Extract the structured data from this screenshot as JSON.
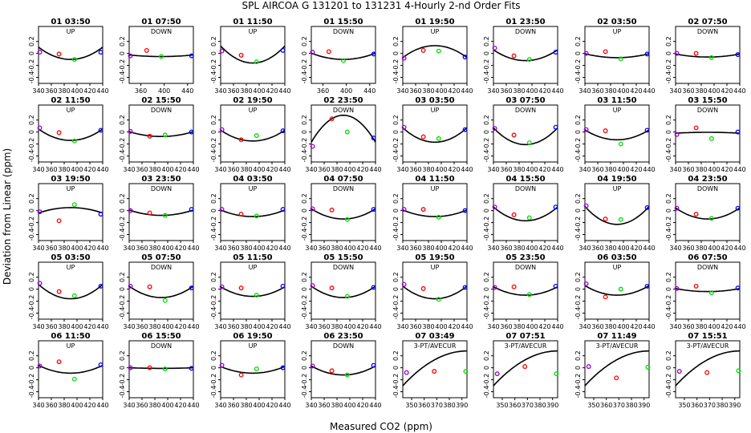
{
  "figure": {
    "title": "SPL   AIRCOA G   131201 to 131231   4-Hourly 2-nd Order Fits",
    "ylabel": "Deviation from Linear (ppm)",
    "xlabel": "Measured CO2 (ppm)"
  },
  "chart_data": {
    "type": "scatter",
    "ylim": [
      -0.5,
      0.45
    ],
    "yticks": [
      -0.4,
      -0.2,
      0.0,
      0.2
    ],
    "grid": false,
    "point_colors": {
      "low": "#9900cc",
      "mid_low": "#ff0000",
      "mid_high": "#00dd00",
      "high": "#0000ff"
    },
    "panels": [
      {
        "label": "01 03:50",
        "dir": "UP",
        "xlim": [
          340,
          440
        ],
        "xticks": [
          340,
          360,
          380,
          400,
          420,
          440
        ],
        "x": [
          342,
          372,
          396,
          437
        ],
        "y": [
          0.02,
          -0.01,
          -0.1,
          0.02
        ],
        "a": 0.105,
        "b": -0.1
      },
      {
        "label": "01 07:50",
        "dir": "DOWN",
        "xlim": [
          340,
          450
        ],
        "xticks": [
          360,
          400,
          440
        ],
        "x": [
          342,
          370,
          395,
          447
        ],
        "y": [
          -0.04,
          0.05,
          -0.05,
          -0.04
        ],
        "a": -0.025,
        "b": -0.052
      },
      {
        "label": "01 11:50",
        "dir": "UP",
        "xlim": [
          340,
          440
        ],
        "xticks": [
          340,
          360,
          380,
          400,
          420,
          440
        ],
        "x": [
          342,
          372,
          396,
          437
        ],
        "y": [
          0.04,
          -0.03,
          -0.14,
          0.05
        ],
        "a": 0.125,
        "b": -0.16
      },
      {
        "label": "01 15:50",
        "dir": "DOWN",
        "xlim": [
          340,
          450
        ],
        "xticks": [
          360,
          400,
          440
        ],
        "x": [
          342,
          370,
          395,
          447
        ],
        "y": [
          0.02,
          0.03,
          -0.12,
          -0.01
        ],
        "a": 0.005,
        "b": -0.1
      },
      {
        "label": "01 19:50",
        "dir": "UP",
        "xlim": [
          340,
          440
        ],
        "xticks": [
          340,
          360,
          380,
          400,
          420,
          440
        ],
        "x": [
          342,
          372,
          396,
          437
        ],
        "y": [
          -0.08,
          0.05,
          0.04,
          -0.06
        ],
        "a": -0.07,
        "b": 0.13
      },
      {
        "label": "01 23:50",
        "dir": "DOWN",
        "xlim": [
          340,
          440
        ],
        "xticks": [
          340,
          360,
          380,
          400,
          420,
          440
        ],
        "x": [
          342,
          372,
          396,
          437
        ],
        "y": [
          0.09,
          -0.04,
          -0.1,
          0.02
        ],
        "a": 0.06,
        "b": -0.12
      },
      {
        "label": "02 03:50",
        "dir": "UP",
        "xlim": [
          340,
          440
        ],
        "xticks": [
          340,
          360,
          380,
          400,
          420,
          440
        ],
        "x": [
          342,
          372,
          396,
          437
        ],
        "y": [
          0.0,
          0.03,
          -0.09,
          -0.01
        ],
        "a": -0.005,
        "b": -0.07
      },
      {
        "label": "02 07:50",
        "dir": "DOWN",
        "xlim": [
          340,
          440
        ],
        "xticks": [
          340,
          360,
          380,
          400,
          420,
          440
        ],
        "x": [
          342,
          372,
          396,
          437
        ],
        "y": [
          0.0,
          0.0,
          -0.07,
          -0.02
        ],
        "a": -0.01,
        "b": -0.06
      },
      {
        "label": "02 11:50",
        "dir": "UP",
        "xlim": [
          340,
          440
        ],
        "xticks": [
          340,
          360,
          380,
          400,
          420,
          440
        ],
        "x": [
          342,
          372,
          396,
          437
        ],
        "y": [
          0.07,
          -0.01,
          -0.15,
          0.03
        ],
        "a": 0.05,
        "b": -0.14
      },
      {
        "label": "02 15:50",
        "dir": "DOWN",
        "xlim": [
          340,
          440
        ],
        "xticks": [
          340,
          360,
          380,
          400,
          420,
          440
        ],
        "x": [
          342,
          372,
          396,
          437
        ],
        "y": [
          0.01,
          -0.07,
          -0.05,
          0.0
        ],
        "a": 0.005,
        "b": -0.075
      },
      {
        "label": "02 19:50",
        "dir": "UP",
        "xlim": [
          340,
          440
        ],
        "xticks": [
          340,
          360,
          380,
          400,
          420,
          440
        ],
        "x": [
          342,
          372,
          396,
          437
        ],
        "y": [
          0.04,
          -0.13,
          -0.06,
          0.02
        ],
        "a": 0.03,
        "b": -0.15
      },
      {
        "label": "02 23:50",
        "dir": "DOWN",
        "xlim": [
          340,
          440
        ],
        "xticks": [
          340,
          360,
          380,
          400,
          420,
          440
        ],
        "x": [
          342,
          372,
          396,
          437
        ],
        "y": [
          -0.24,
          0.22,
          0.0,
          -0.1
        ],
        "a": -0.17,
        "b": 0.28
      },
      {
        "label": "03 03:50",
        "dir": "UP",
        "xlim": [
          340,
          440
        ],
        "xticks": [
          340,
          360,
          380,
          400,
          420,
          440
        ],
        "x": [
          342,
          372,
          396,
          437
        ],
        "y": [
          0.08,
          -0.08,
          -0.11,
          0.04
        ],
        "a": 0.07,
        "b": -0.17
      },
      {
        "label": "03 07:50",
        "dir": "DOWN",
        "xlim": [
          340,
          440
        ],
        "xticks": [
          340,
          360,
          380,
          400,
          420,
          440
        ],
        "x": [
          342,
          372,
          396,
          437
        ],
        "y": [
          0.06,
          -0.05,
          -0.18,
          0.08
        ],
        "a": 0.07,
        "b": -0.21
      },
      {
        "label": "03 11:50",
        "dir": "UP",
        "xlim": [
          340,
          440
        ],
        "xticks": [
          340,
          360,
          380,
          400,
          420,
          440
        ],
        "x": [
          342,
          372,
          396,
          437
        ],
        "y": [
          0.04,
          0.02,
          -0.2,
          0.03
        ],
        "a": 0.035,
        "b": -0.13
      },
      {
        "label": "03 15:50",
        "dir": "DOWN",
        "xlim": [
          340,
          440
        ],
        "xticks": [
          340,
          360,
          380,
          400,
          420,
          440
        ],
        "x": [
          342,
          372,
          396,
          437
        ],
        "y": [
          -0.04,
          0.07,
          -0.11,
          0.0
        ],
        "a": -0.02,
        "b": -0.005
      },
      {
        "label": "03 19:50",
        "dir": "UP",
        "xlim": [
          340,
          440
        ],
        "xticks": [
          340,
          360,
          380,
          400,
          420,
          440
        ],
        "x": [
          342,
          372,
          396,
          437
        ],
        "y": [
          -0.02,
          -0.17,
          0.1,
          -0.06
        ],
        "a": -0.04,
        "b": 0.05
      },
      {
        "label": "03 23:50",
        "dir": "DOWN",
        "xlim": [
          340,
          440
        ],
        "xticks": [
          340,
          360,
          380,
          400,
          420,
          440
        ],
        "x": [
          342,
          372,
          396,
          437
        ],
        "y": [
          0.0,
          -0.04,
          -0.08,
          0.02
        ],
        "a": 0.01,
        "b": -0.08
      },
      {
        "label": "04 03:50",
        "dir": "UP",
        "xlim": [
          340,
          440
        ],
        "xticks": [
          340,
          360,
          380,
          400,
          420,
          440
        ],
        "x": [
          342,
          372,
          396,
          437
        ],
        "y": [
          0.02,
          -0.06,
          -0.09,
          0.02
        ],
        "a": 0.01,
        "b": -0.1
      },
      {
        "label": "04 07:50",
        "dir": "DOWN",
        "xlim": [
          340,
          440
        ],
        "xticks": [
          340,
          360,
          380,
          400,
          420,
          440
        ],
        "x": [
          342,
          372,
          396,
          437
        ],
        "y": [
          0.03,
          0.01,
          -0.15,
          0.02
        ],
        "a": 0.03,
        "b": -0.14
      },
      {
        "label": "04 11:50",
        "dir": "UP",
        "xlim": [
          340,
          440
        ],
        "xticks": [
          340,
          360,
          380,
          400,
          420,
          440
        ],
        "x": [
          342,
          372,
          396,
          437
        ],
        "y": [
          0.02,
          0.02,
          -0.11,
          0.0
        ],
        "a": 0.01,
        "b": -0.1
      },
      {
        "label": "04 15:50",
        "dir": "DOWN",
        "xlim": [
          340,
          440
        ],
        "xticks": [
          340,
          360,
          380,
          400,
          420,
          440
        ],
        "x": [
          342,
          372,
          396,
          437
        ],
        "y": [
          0.06,
          -0.07,
          -0.12,
          0.06
        ],
        "a": 0.06,
        "b": -0.17
      },
      {
        "label": "04 19:50",
        "dir": "UP",
        "xlim": [
          340,
          440
        ],
        "xticks": [
          340,
          360,
          380,
          400,
          420,
          440
        ],
        "x": [
          342,
          372,
          396,
          437
        ],
        "y": [
          0.08,
          -0.14,
          -0.15,
          0.05
        ],
        "a": 0.07,
        "b": -0.23
      },
      {
        "label": "04 23:50",
        "dir": "DOWN",
        "xlim": [
          340,
          440
        ],
        "xticks": [
          340,
          360,
          380,
          400,
          420,
          440
        ],
        "x": [
          342,
          372,
          396,
          437
        ],
        "y": [
          0.04,
          -0.06,
          -0.13,
          0.04
        ],
        "a": 0.045,
        "b": -0.14
      },
      {
        "label": "05 03:50",
        "dir": "UP",
        "xlim": [
          340,
          440
        ],
        "xticks": [
          340,
          360,
          380,
          400,
          420,
          440
        ],
        "x": [
          342,
          372,
          396,
          437
        ],
        "y": [
          0.1,
          -0.04,
          -0.11,
          0.05
        ],
        "a": 0.08,
        "b": -0.16
      },
      {
        "label": "05 07:50",
        "dir": "DOWN",
        "xlim": [
          340,
          440
        ],
        "xticks": [
          340,
          360,
          380,
          400,
          420,
          440
        ],
        "x": [
          342,
          372,
          396,
          437
        ],
        "y": [
          0.05,
          0.04,
          -0.19,
          0.02
        ],
        "a": 0.05,
        "b": -0.14
      },
      {
        "label": "05 11:50",
        "dir": "UP",
        "xlim": [
          340,
          440
        ],
        "xticks": [
          340,
          360,
          380,
          400,
          420,
          440
        ],
        "x": [
          342,
          372,
          396,
          437
        ],
        "y": [
          0.04,
          0.02,
          -0.1,
          0.05
        ],
        "a": 0.04,
        "b": -0.12
      },
      {
        "label": "05 15:50",
        "dir": "DOWN",
        "xlim": [
          340,
          440
        ],
        "xticks": [
          340,
          360,
          380,
          400,
          420,
          440
        ],
        "x": [
          342,
          372,
          396,
          437
        ],
        "y": [
          0.06,
          0.02,
          -0.12,
          0.03
        ],
        "a": 0.05,
        "b": -0.14
      },
      {
        "label": "05 19:50",
        "dir": "UP",
        "xlim": [
          340,
          440
        ],
        "xticks": [
          340,
          360,
          380,
          400,
          420,
          440
        ],
        "x": [
          342,
          372,
          396,
          437
        ],
        "y": [
          0.08,
          0.01,
          -0.17,
          0.03
        ],
        "a": 0.05,
        "b": -0.16
      },
      {
        "label": "05 23:50",
        "dir": "DOWN",
        "xlim": [
          340,
          440
        ],
        "xticks": [
          340,
          360,
          380,
          400,
          420,
          440
        ],
        "x": [
          342,
          372,
          396,
          437
        ],
        "y": [
          0.03,
          0.04,
          -0.09,
          0.05
        ],
        "a": 0.04,
        "b": -0.1
      },
      {
        "label": "06 03:50",
        "dir": "UP",
        "xlim": [
          340,
          440
        ],
        "xticks": [
          340,
          360,
          380,
          400,
          420,
          440
        ],
        "x": [
          342,
          372,
          396,
          437
        ],
        "y": [
          0.09,
          -0.13,
          0.0,
          0.05
        ],
        "a": 0.06,
        "b": -0.1
      },
      {
        "label": "06 07:50",
        "dir": "DOWN",
        "xlim": [
          340,
          440
        ],
        "xticks": [
          340,
          360,
          380,
          400,
          420,
          440
        ],
        "x": [
          342,
          372,
          396,
          437
        ],
        "y": [
          0.01,
          0.05,
          -0.06,
          0.02
        ],
        "a": 0.01,
        "b": -0.04
      },
      {
        "label": "06 11:50",
        "dir": "UP",
        "xlim": [
          340,
          440
        ],
        "xticks": [
          340,
          360,
          380,
          400,
          420,
          440
        ],
        "x": [
          342,
          372,
          396,
          437
        ],
        "y": [
          0.03,
          0.1,
          -0.19,
          0.05
        ],
        "a": 0.04,
        "b": -0.09
      },
      {
        "label": "06 15:50",
        "dir": "DOWN",
        "xlim": [
          340,
          440
        ],
        "xticks": [
          340,
          360,
          380,
          400,
          420,
          440
        ],
        "x": [
          342,
          372,
          396,
          437
        ],
        "y": [
          0.0,
          0.0,
          -0.02,
          -0.01
        ],
        "a": 0.0,
        "b": -0.01
      },
      {
        "label": "06 19:50",
        "dir": "UP",
        "xlim": [
          340,
          440
        ],
        "xticks": [
          340,
          360,
          380,
          400,
          420,
          440
        ],
        "x": [
          342,
          372,
          396,
          437
        ],
        "y": [
          0.04,
          -0.12,
          -0.02,
          0.0
        ],
        "a": 0.02,
        "b": -0.09
      },
      {
        "label": "06 23:50",
        "dir": "DOWN",
        "xlim": [
          340,
          440
        ],
        "xticks": [
          340,
          360,
          380,
          400,
          420,
          440
        ],
        "x": [
          342,
          372,
          396,
          437
        ],
        "y": [
          0.03,
          -0.05,
          -0.12,
          0.04
        ],
        "a": 0.03,
        "b": -0.12
      },
      {
        "label": "07 03:49",
        "dir": "3-PT/AVECUR",
        "xlim": [
          343,
          394
        ],
        "xticks": [
          350,
          360,
          370,
          380,
          390
        ],
        "x": [
          346,
          368,
          393
        ],
        "y": [
          -0.08,
          -0.06,
          -0.06
        ],
        "curve_start": -0.3,
        "curve_end": 0.28
      },
      {
        "label": "07 07:51",
        "dir": "3-PT/AVECUR",
        "xlim": [
          343,
          394
        ],
        "xticks": [
          350,
          360,
          370,
          380,
          390
        ],
        "x": [
          346,
          368,
          393
        ],
        "y": [
          -0.1,
          0.02,
          -0.1
        ],
        "curve_start": -0.3,
        "curve_end": 0.28
      },
      {
        "label": "07 11:49",
        "dir": "3-PT/AVECUR",
        "xlim": [
          343,
          394
        ],
        "xticks": [
          350,
          360,
          370,
          380,
          390
        ],
        "x": [
          346,
          368,
          393
        ],
        "y": [
          0.02,
          -0.17,
          0.01
        ],
        "curve_start": -0.3,
        "curve_end": 0.28
      },
      {
        "label": "07 15:51",
        "dir": "3-PT/AVECUR",
        "xlim": [
          343,
          394
        ],
        "xticks": [
          350,
          360,
          370,
          380,
          390
        ],
        "x": [
          346,
          368,
          393
        ],
        "y": [
          -0.06,
          -0.08,
          -0.05
        ],
        "curve_start": -0.3,
        "curve_end": 0.28
      }
    ]
  }
}
